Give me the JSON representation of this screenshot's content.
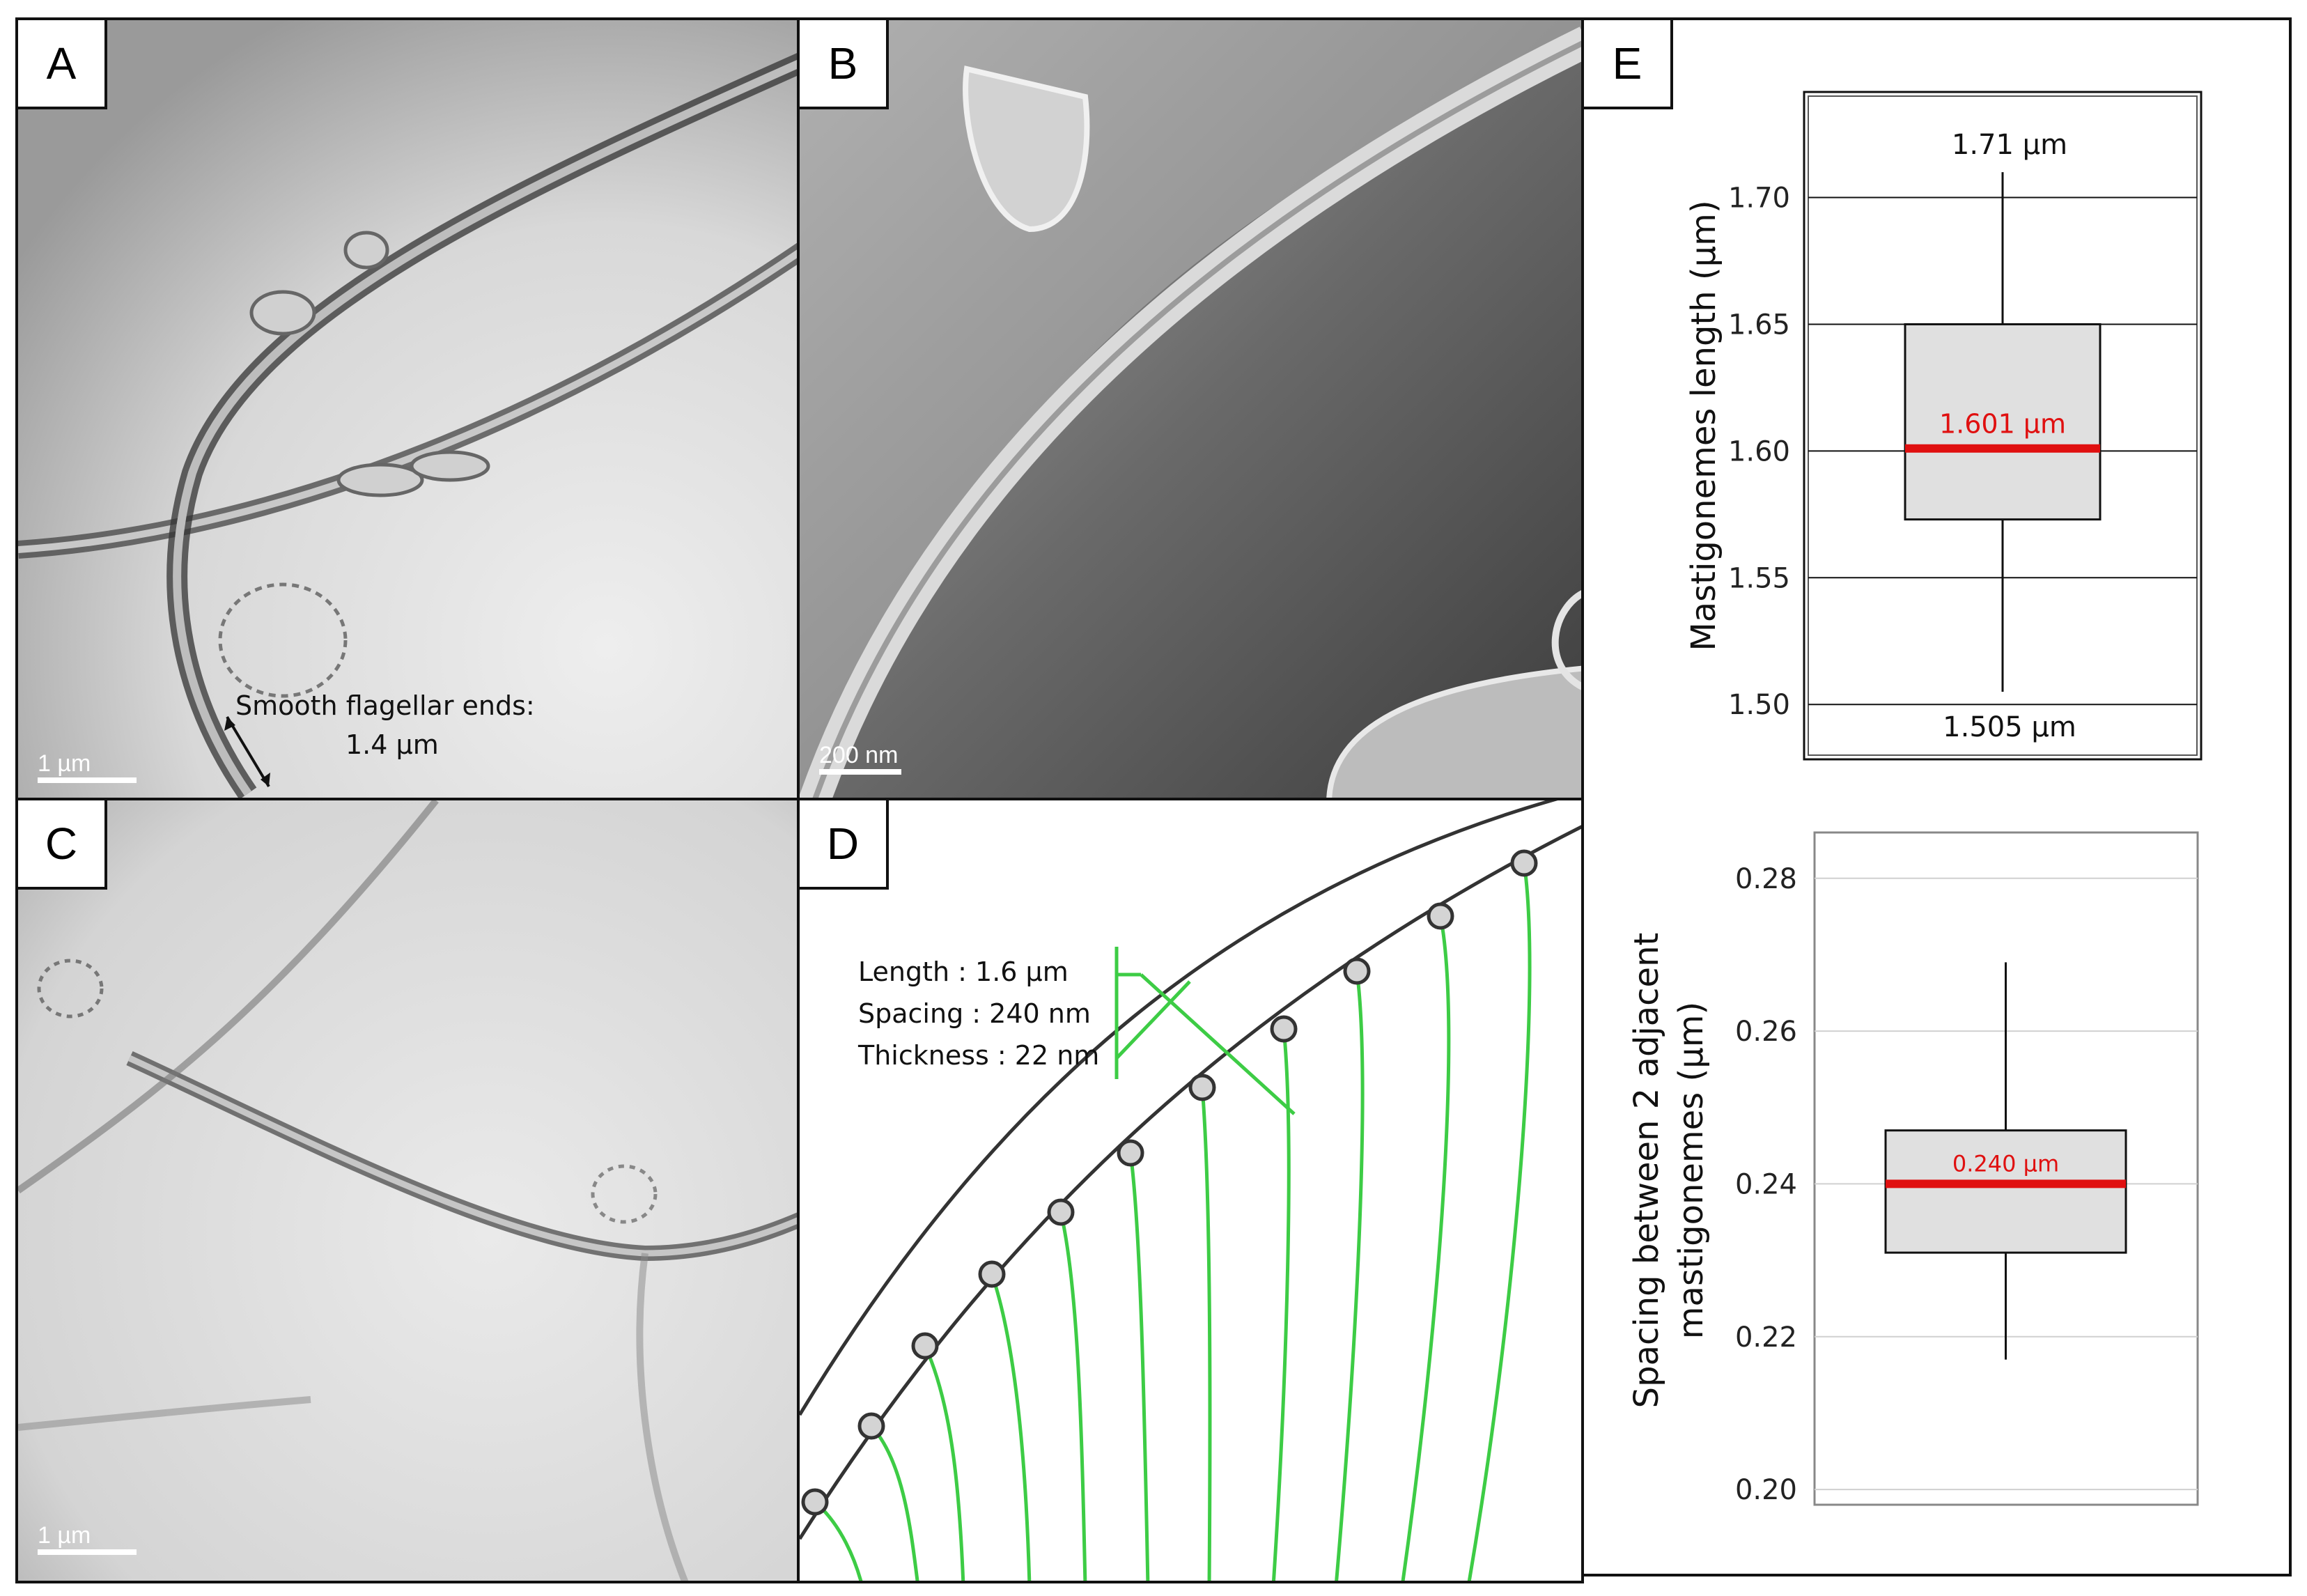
{
  "panels": {
    "A": {
      "label": "A",
      "scale_bar": "1 µm",
      "annotation_line1": "Smooth flagellar ends:",
      "annotation_line2": "1.4 µm"
    },
    "B": {
      "label": "B",
      "scale_bar": "200 nm"
    },
    "C": {
      "label": "C",
      "scale_bar": "1 µm"
    },
    "D": {
      "label": "D",
      "length_text": "Length : 1.6 µm",
      "spacing_text": "Spacing : 240 nm",
      "thickness_text": "Thickness : 22 nm"
    },
    "E": {
      "label": "E"
    }
  },
  "colors": {
    "median_line": "#e01010",
    "box_fill": "#e0e0e0",
    "hair_green": "#3dcc45",
    "node_fill": "#d4d4d4"
  },
  "chart_data": [
    {
      "type": "box",
      "ylabel": "Mastigonemes length (µm)",
      "ylim": [
        1.48,
        1.74
      ],
      "yticks": [
        "1.50",
        "1.55",
        "1.60",
        "1.65",
        "1.70"
      ],
      "grid": true,
      "box": {
        "min": 1.505,
        "q1": 1.573,
        "median": 1.601,
        "q3": 1.65,
        "max": 1.71
      },
      "labels": {
        "max": "1.71 µm",
        "median": "1.601 µm",
        "min": "1.505 µm"
      }
    },
    {
      "type": "box",
      "ylabel": "Spacing between 2 adjacent mastigonemes (µm)",
      "ylabel_line1": "Spacing between 2 adjacent",
      "ylabel_line2": "mastigonemes (µm)",
      "ylim": [
        0.198,
        0.286
      ],
      "yticks": [
        "0.20",
        "0.22",
        "0.24",
        "0.26",
        "0.28"
      ],
      "grid": true,
      "box": {
        "min": 0.217,
        "q1": 0.231,
        "median": 0.24,
        "q3": 0.247,
        "max": 0.269
      },
      "labels": {
        "median": "0.240 µm"
      }
    }
  ]
}
